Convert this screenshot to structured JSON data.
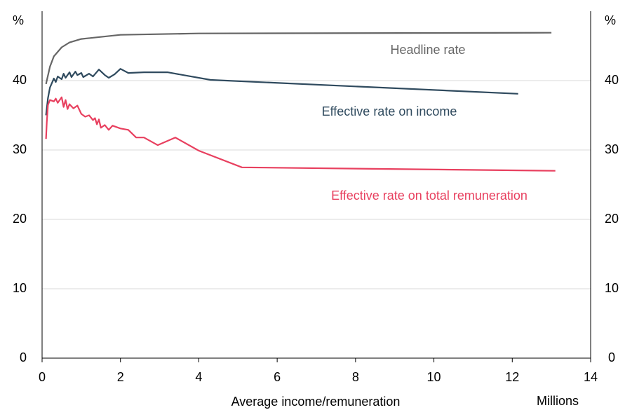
{
  "chart_data": {
    "type": "line",
    "y_unit": "%",
    "x_label": "Average income/remuneration",
    "x_unit": "Millions",
    "xlim": [
      0,
      14
    ],
    "xticks": [
      0,
      2,
      4,
      6,
      8,
      10,
      12,
      14
    ],
    "ylim": [
      0,
      50
    ],
    "yticks": [
      0,
      10,
      20,
      30,
      40
    ],
    "grid": true,
    "series": [
      {
        "name": "Headline rate",
        "color": "#666666",
        "x": [
          0.1,
          0.2,
          0.3,
          0.5,
          0.7,
          1.0,
          2.0,
          4.0,
          13.0
        ],
        "values": [
          39.5,
          42,
          43.5,
          44.8,
          45.5,
          46,
          46.6,
          46.8,
          46.9
        ]
      },
      {
        "name": "Effective rate on income",
        "color": "#2f4a5e",
        "x": [
          0.1,
          0.15,
          0.2,
          0.3,
          0.35,
          0.4,
          0.5,
          0.55,
          0.6,
          0.7,
          0.75,
          0.85,
          0.9,
          1.0,
          1.05,
          1.2,
          1.3,
          1.45,
          1.6,
          1.7,
          1.85,
          2.0,
          2.2,
          2.6,
          3.2,
          4.3,
          12.15
        ],
        "values": [
          35,
          37.5,
          39,
          40.3,
          39.8,
          40.6,
          40.2,
          41,
          40.4,
          41.2,
          40.5,
          41.3,
          40.8,
          41.1,
          40.5,
          41,
          40.6,
          41.6,
          40.8,
          40.4,
          40.9,
          41.7,
          41.1,
          41.2,
          41.2,
          40.1,
          38.1
        ]
      },
      {
        "name": "Effective rate on total remuneration",
        "color": "#e8405f",
        "x": [
          0.1,
          0.12,
          0.15,
          0.2,
          0.3,
          0.35,
          0.4,
          0.5,
          0.55,
          0.6,
          0.65,
          0.7,
          0.8,
          0.9,
          1.0,
          1.1,
          1.2,
          1.3,
          1.35,
          1.4,
          1.45,
          1.5,
          1.6,
          1.7,
          1.8,
          2.0,
          2.2,
          2.4,
          2.6,
          2.95,
          3.4,
          4.0,
          5.1,
          13.1
        ],
        "values": [
          31.6,
          34,
          36.5,
          37.2,
          37,
          37.4,
          36.8,
          37.6,
          36.2,
          37.2,
          35.9,
          36.6,
          36,
          36.4,
          35.2,
          34.8,
          35,
          34.3,
          34.6,
          33.7,
          34.4,
          33.2,
          33.6,
          32.9,
          33.5,
          33.1,
          32.9,
          31.8,
          31.8,
          30.7,
          31.8,
          29.9,
          27.5,
          27.0
        ]
      }
    ]
  }
}
